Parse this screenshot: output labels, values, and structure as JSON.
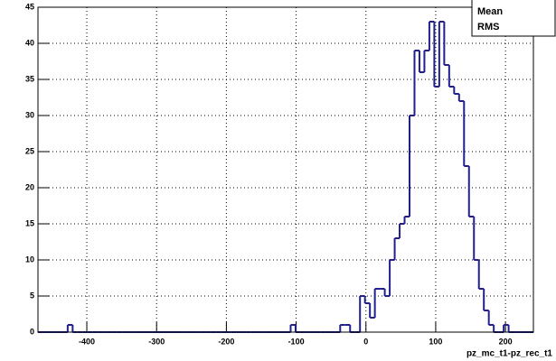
{
  "chart_data": {
    "type": "histogram",
    "x_label": "pz_mc_t1-pz_rec_t1",
    "stats_labels": [
      "Mean",
      "RMS"
    ],
    "color": "#20208f",
    "grid": true,
    "xlim": [
      -470,
      240
    ],
    "ylim": [
      0,
      45
    ],
    "xticks": [
      -400,
      -300,
      -200,
      -100,
      0,
      100,
      200
    ],
    "yticks": [
      0,
      5,
      10,
      15,
      20,
      25,
      30,
      35,
      40,
      45
    ],
    "bins": [
      -470,
      -462.9,
      -455.8,
      -448.7,
      -441.6,
      -434.5,
      -427.4,
      -420.3,
      -413.2,
      -406.1,
      -399,
      -391.9,
      -384.8,
      -377.7,
      -370.6,
      -363.5,
      -356.4,
      -349.3,
      -342.2,
      -335.1,
      -328,
      -320.9,
      -313.8,
      -306.7,
      -299.6,
      -292.5,
      -285.4,
      -278.3,
      -271.2,
      -264.1,
      -257,
      -249.9,
      -242.8,
      -235.7,
      -228.6,
      -221.5,
      -214.4,
      -207.3,
      -200.2,
      -193.1,
      -186,
      -178.9,
      -171.8,
      -164.7,
      -157.6,
      -150.5,
      -143.4,
      -136.3,
      -129.2,
      -122.1,
      -115,
      -107.9,
      -100.8,
      -93.7,
      -86.6,
      -79.5,
      -72.4,
      -65.3,
      -58.2,
      -51.1,
      -44,
      -36.9,
      -29.8,
      -22.7,
      -15.6,
      -8.5,
      -1.4,
      5.7,
      12.8,
      19.9,
      27,
      34.1,
      41.2,
      48.3,
      55.4,
      62.5,
      69.6,
      76.7,
      83.8,
      90.9,
      98,
      105.1,
      112.2,
      119.3,
      126.4,
      133.5,
      140.6,
      147.7,
      154.8,
      161.9,
      169,
      176.1,
      183.2,
      190.3,
      197.4,
      204.5,
      211.6,
      218.7,
      225.8,
      232.9,
      240
    ],
    "values": [
      0,
      0,
      0,
      0,
      0,
      0,
      1,
      0,
      0,
      0,
      0,
      0,
      0,
      0,
      0,
      0,
      0,
      0,
      0,
      0,
      0,
      0,
      0,
      0,
      0,
      0,
      0,
      0,
      0,
      0,
      0,
      0,
      0,
      0,
      0,
      0,
      0,
      0,
      0,
      0,
      0,
      0,
      0,
      0,
      0,
      0,
      0,
      0,
      0,
      0,
      0,
      1,
      0,
      0,
      0,
      0,
      0,
      0,
      0,
      0,
      0,
      1,
      1,
      0,
      0,
      5,
      4,
      2,
      6,
      6,
      5,
      10,
      13,
      15,
      16,
      30,
      39,
      36,
      39,
      43,
      34,
      43,
      37,
      34,
      33,
      32,
      23,
      16,
      10,
      6,
      3,
      1,
      0,
      0,
      1,
      0,
      0,
      0,
      0,
      0
    ]
  }
}
